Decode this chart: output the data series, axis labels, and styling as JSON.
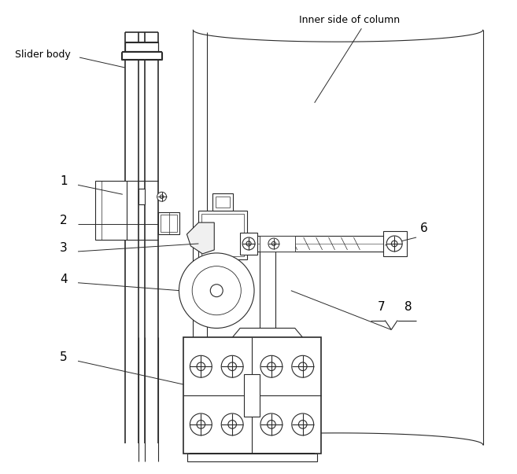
{
  "bg_color": "#ffffff",
  "line_color": "#2a2a2a",
  "lw": 0.8,
  "tlw": 1.2,
  "text_color": "#000000",
  "labels": {
    "slider_body": "Slider body",
    "inner_col": "Inner side of column",
    "1": "1",
    "2": "2",
    "3": "3",
    "4": "4",
    "5": "5",
    "6": "6",
    "7": "7",
    "8": "8"
  }
}
